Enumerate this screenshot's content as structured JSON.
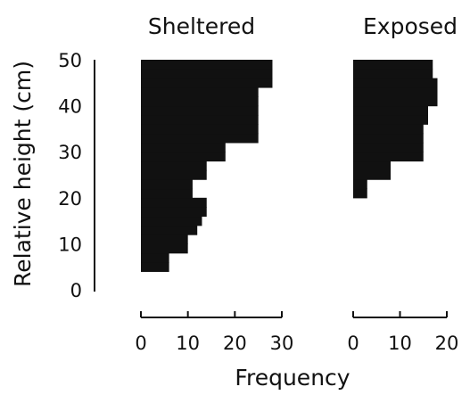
{
  "chart_data": [
    {
      "type": "bar",
      "orientation": "horizontal",
      "title": "Sheltered",
      "xlabel": "Frequency",
      "ylabel": "Relative height (cm)",
      "xlim": [
        0,
        30
      ],
      "ylim": [
        0,
        50
      ],
      "x_ticks": [
        "0",
        "10",
        "20",
        "30"
      ],
      "y_ticks": [
        "0",
        "10",
        "20",
        "30",
        "40",
        "50"
      ],
      "bin_width": 2,
      "bins": [
        {
          "y0": 4,
          "y1": 6,
          "value": 6
        },
        {
          "y0": 6,
          "y1": 8,
          "value": 6
        },
        {
          "y0": 8,
          "y1": 10,
          "value": 10
        },
        {
          "y0": 10,
          "y1": 12,
          "value": 10
        },
        {
          "y0": 12,
          "y1": 14,
          "value": 12
        },
        {
          "y0": 14,
          "y1": 16,
          "value": 13
        },
        {
          "y0": 16,
          "y1": 18,
          "value": 14
        },
        {
          "y0": 18,
          "y1": 20,
          "value": 14
        },
        {
          "y0": 20,
          "y1": 22,
          "value": 11
        },
        {
          "y0": 22,
          "y1": 24,
          "value": 11
        },
        {
          "y0": 24,
          "y1": 26,
          "value": 14
        },
        {
          "y0": 26,
          "y1": 28,
          "value": 14
        },
        {
          "y0": 28,
          "y1": 30,
          "value": 18
        },
        {
          "y0": 30,
          "y1": 32,
          "value": 18
        },
        {
          "y0": 32,
          "y1": 34,
          "value": 25
        },
        {
          "y0": 34,
          "y1": 36,
          "value": 25
        },
        {
          "y0": 36,
          "y1": 38,
          "value": 25
        },
        {
          "y0": 38,
          "y1": 40,
          "value": 25
        },
        {
          "y0": 40,
          "y1": 42,
          "value": 25
        },
        {
          "y0": 42,
          "y1": 44,
          "value": 25
        },
        {
          "y0": 44,
          "y1": 46,
          "value": 28
        },
        {
          "y0": 46,
          "y1": 48,
          "value": 28
        },
        {
          "y0": 48,
          "y1": 50,
          "value": 28
        }
      ],
      "grid": false
    },
    {
      "type": "bar",
      "orientation": "horizontal",
      "title": "Exposed",
      "xlabel": "Frequency",
      "ylabel": "Relative height (cm)",
      "xlim": [
        0,
        20
      ],
      "ylim": [
        0,
        50
      ],
      "x_ticks": [
        "0",
        "10",
        "20"
      ],
      "bin_width": 2,
      "bins": [
        {
          "y0": 20,
          "y1": 22,
          "value": 3
        },
        {
          "y0": 22,
          "y1": 24,
          "value": 3
        },
        {
          "y0": 24,
          "y1": 26,
          "value": 8
        },
        {
          "y0": 26,
          "y1": 28,
          "value": 8
        },
        {
          "y0": 28,
          "y1": 30,
          "value": 15
        },
        {
          "y0": 30,
          "y1": 32,
          "value": 15
        },
        {
          "y0": 32,
          "y1": 34,
          "value": 15
        },
        {
          "y0": 34,
          "y1": 36,
          "value": 15
        },
        {
          "y0": 36,
          "y1": 38,
          "value": 16
        },
        {
          "y0": 38,
          "y1": 40,
          "value": 16
        },
        {
          "y0": 40,
          "y1": 42,
          "value": 18
        },
        {
          "y0": 42,
          "y1": 44,
          "value": 18
        },
        {
          "y0": 44,
          "y1": 46,
          "value": 18
        },
        {
          "y0": 46,
          "y1": 48,
          "value": 17
        },
        {
          "y0": 48,
          "y1": 50,
          "value": 17
        }
      ],
      "grid": false
    }
  ],
  "colors": {
    "bars": "#111111",
    "axes": "#111111",
    "background": "#ffffff"
  }
}
